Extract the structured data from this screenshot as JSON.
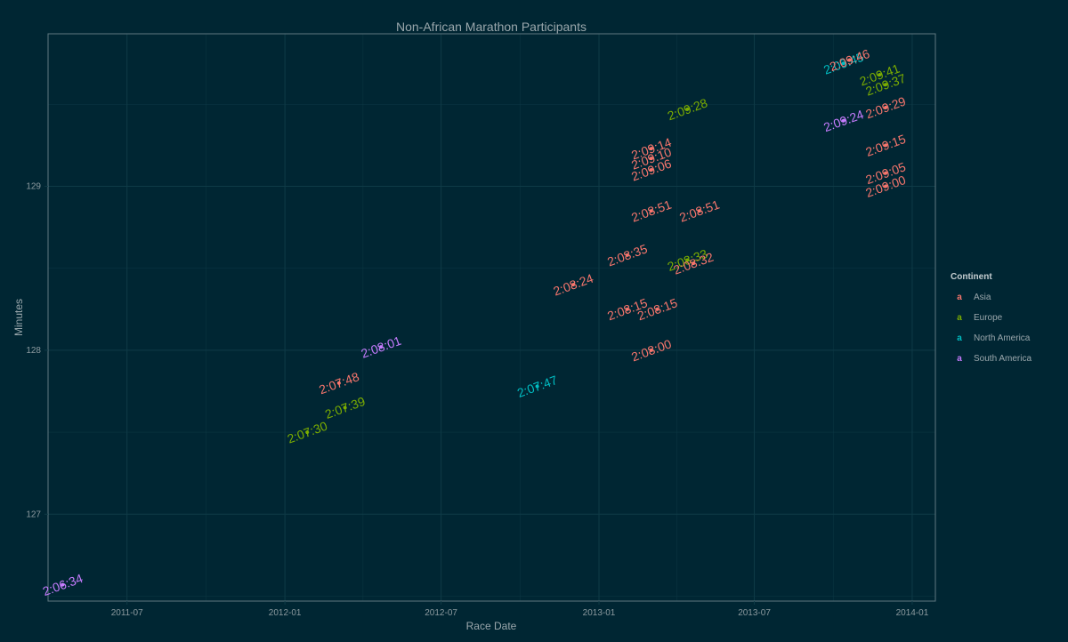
{
  "chart_data": {
    "type": "scatter",
    "title": "Non-African Marathon Participants",
    "xlabel": "Race Date",
    "ylabel": "Minutes",
    "xlim": [
      "2011-03-31",
      "2014-01-28"
    ],
    "ylim": [
      126.47,
      129.93
    ],
    "x_ticks": [
      "2011-07-01",
      "2012-01-01",
      "2012-07-01",
      "2013-01-01",
      "2013-07-01",
      "2014-01-01"
    ],
    "x_tick_labels": [
      "2011-07",
      "2012-01",
      "2012-07",
      "2013-01",
      "2013-07",
      "2014-01"
    ],
    "y_ticks": [
      127,
      128,
      129
    ],
    "y_tick_labels": [
      "127",
      "128",
      "129"
    ],
    "grid": true,
    "legend": {
      "title": "Continent",
      "position": "right",
      "items": [
        {
          "name": "Asia",
          "color": "#F8766D"
        },
        {
          "name": "Europe",
          "color": "#7CAE00"
        },
        {
          "name": "North America",
          "color": "#00BFC4"
        },
        {
          "name": "South America",
          "color": "#C77CFF"
        }
      ]
    },
    "points": [
      {
        "date": "2011-04-17",
        "minutes": 126.57,
        "label": "2:06:34",
        "continent": "South America"
      },
      {
        "date": "2012-01-27",
        "minutes": 127.5,
        "label": "2:07:30",
        "continent": "Europe"
      },
      {
        "date": "2012-03-04",
        "minutes": 127.8,
        "label": "2:07:48",
        "continent": "Asia"
      },
      {
        "date": "2012-03-11",
        "minutes": 127.65,
        "label": "2:07:39",
        "continent": "Europe"
      },
      {
        "date": "2012-04-22",
        "minutes": 128.02,
        "label": "2:08:01",
        "continent": "South America"
      },
      {
        "date": "2012-10-21",
        "minutes": 127.78,
        "label": "2:07:47",
        "continent": "North America"
      },
      {
        "date": "2012-12-02",
        "minutes": 128.4,
        "label": "2:08:24",
        "continent": "Asia"
      },
      {
        "date": "2013-02-03",
        "minutes": 128.58,
        "label": "2:08:35",
        "continent": "Asia"
      },
      {
        "date": "2013-02-03",
        "minutes": 128.25,
        "label": "2:08:15",
        "continent": "Asia"
      },
      {
        "date": "2013-03-03",
        "minutes": 129.23,
        "label": "2:09:14",
        "continent": "Asia"
      },
      {
        "date": "2013-03-03",
        "minutes": 129.17,
        "label": "2:09:10",
        "continent": "Asia"
      },
      {
        "date": "2013-03-03",
        "minutes": 129.1,
        "label": "2:09:06",
        "continent": "Asia"
      },
      {
        "date": "2013-03-03",
        "minutes": 128.85,
        "label": "2:08:51",
        "continent": "Asia"
      },
      {
        "date": "2013-03-03",
        "minutes": 128.0,
        "label": "2:08:00",
        "continent": "Asia"
      },
      {
        "date": "2013-03-10",
        "minutes": 128.25,
        "label": "2:08:15",
        "continent": "Asia"
      },
      {
        "date": "2013-04-14",
        "minutes": 129.47,
        "label": "2:09:28",
        "continent": "Europe"
      },
      {
        "date": "2013-04-14",
        "minutes": 128.55,
        "label": "2:08:33",
        "continent": "Europe"
      },
      {
        "date": "2013-04-21",
        "minutes": 128.53,
        "label": "2:08:32",
        "continent": "Asia"
      },
      {
        "date": "2013-04-28",
        "minutes": 128.85,
        "label": "2:08:51",
        "continent": "Asia"
      },
      {
        "date": "2013-10-13",
        "minutes": 129.4,
        "label": "2:09:24",
        "continent": "South America"
      },
      {
        "date": "2013-10-13",
        "minutes": 129.75,
        "label": "2:09:45",
        "continent": "North America"
      },
      {
        "date": "2013-10-20",
        "minutes": 129.77,
        "label": "2:09:46",
        "continent": "Asia"
      },
      {
        "date": "2013-11-24",
        "minutes": 129.68,
        "label": "2:09:41",
        "continent": "Europe"
      },
      {
        "date": "2013-12-01",
        "minutes": 129.62,
        "label": "2:09:37",
        "continent": "Europe"
      },
      {
        "date": "2013-12-01",
        "minutes": 129.48,
        "label": "2:09:29",
        "continent": "Asia"
      },
      {
        "date": "2013-12-01",
        "minutes": 129.25,
        "label": "2:09:15",
        "continent": "Asia"
      },
      {
        "date": "2013-12-01",
        "minutes": 129.08,
        "label": "2:09:05",
        "continent": "Asia"
      },
      {
        "date": "2013-12-01",
        "minutes": 129.0,
        "label": "2:09:00",
        "continent": "Asia"
      }
    ]
  },
  "colors": {
    "background": "#002633",
    "panel_border": "#5f7880",
    "grid": "#0f3b47"
  }
}
